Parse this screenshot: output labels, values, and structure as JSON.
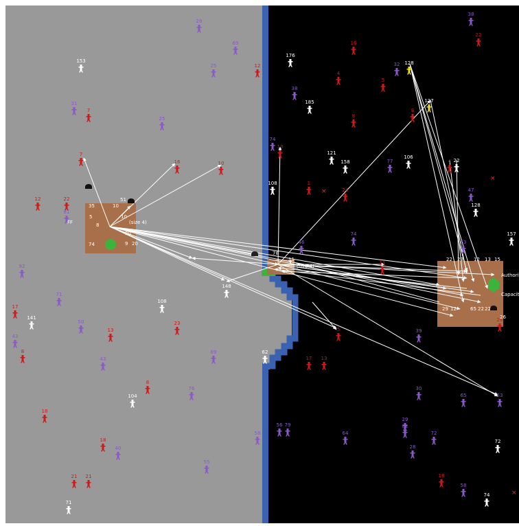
{
  "map": {
    "colors": {
      "land": "#999999",
      "sea": "#000000",
      "coast": "#3a62b0",
      "town": "#a8704a",
      "green": "#3cb43c",
      "arrow": "#ffffff",
      "agent_red": "#d01818",
      "agent_purple": "#8a58c8",
      "agent_white": "#ffffff",
      "agent_yellow": "#f0e020"
    }
  },
  "towns": [
    {
      "name": "town-west",
      "labels": [
        "35",
        "10",
        "5",
        "74",
        "20",
        "51",
        "9",
        "20",
        "8",
        "10"
      ],
      "fragments": [
        "FF",
        "(size 4)"
      ]
    },
    {
      "name": "town-center",
      "labels": [
        "78",
        "11"
      ],
      "fragments": [
        "(size 4)"
      ]
    },
    {
      "name": "town-east",
      "labels": [
        "22",
        "13",
        "15",
        "12",
        "29",
        "12",
        "65",
        "22",
        "22",
        "3",
        "23",
        "26"
      ],
      "fragments": [
        "Authorit",
        "Capacit"
      ]
    }
  ],
  "agents": [
    {
      "id": "28",
      "c": "purple"
    },
    {
      "id": "69",
      "c": "purple"
    },
    {
      "id": "12",
      "c": "red"
    },
    {
      "id": "153",
      "c": "white"
    },
    {
      "id": "25",
      "c": "purple"
    },
    {
      "id": "31",
      "c": "purple"
    },
    {
      "id": "7",
      "c": "red"
    },
    {
      "id": "25",
      "c": "purple"
    },
    {
      "id": "7",
      "c": "red"
    },
    {
      "id": "16",
      "c": "red"
    },
    {
      "id": "10",
      "c": "red"
    },
    {
      "id": "12",
      "c": "red"
    },
    {
      "id": "22",
      "c": "red"
    },
    {
      "id": "81",
      "c": "purple"
    },
    {
      "id": "92",
      "c": "purple"
    },
    {
      "id": "71",
      "c": "purple"
    },
    {
      "id": "17",
      "c": "red"
    },
    {
      "id": "141",
      "c": "white"
    },
    {
      "id": "43",
      "c": "purple"
    },
    {
      "id": "8",
      "c": "red"
    },
    {
      "id": "50",
      "c": "purple"
    },
    {
      "id": "13",
      "c": "red"
    },
    {
      "id": "43",
      "c": "purple"
    },
    {
      "id": "108",
      "c": "white"
    },
    {
      "id": "23",
      "c": "red"
    },
    {
      "id": "148",
      "c": "white"
    },
    {
      "id": "69",
      "c": "purple"
    },
    {
      "id": "8",
      "c": "red"
    },
    {
      "id": "104",
      "c": "white"
    },
    {
      "id": "76",
      "c": "purple"
    },
    {
      "id": "18",
      "c": "red"
    },
    {
      "id": "18",
      "c": "red"
    },
    {
      "id": "40",
      "c": "purple"
    },
    {
      "id": "55",
      "c": "purple"
    },
    {
      "id": "21",
      "c": "red"
    },
    {
      "id": "21",
      "c": "red"
    },
    {
      "id": "71",
      "c": "white"
    },
    {
      "id": "62",
      "c": "white"
    },
    {
      "id": "58",
      "c": "purple"
    },
    {
      "id": "38",
      "c": "purple"
    },
    {
      "id": "22",
      "c": "red"
    },
    {
      "id": "176",
      "c": "white"
    },
    {
      "id": "16",
      "c": "red"
    },
    {
      "id": "4",
      "c": "red"
    },
    {
      "id": "5",
      "c": "red"
    },
    {
      "id": "32",
      "c": "purple"
    },
    {
      "id": "128",
      "c": "yellow"
    },
    {
      "id": "38",
      "c": "purple"
    },
    {
      "id": "185",
      "c": "white"
    },
    {
      "id": "8",
      "c": "red"
    },
    {
      "id": "8",
      "c": "red"
    },
    {
      "id": "127",
      "c": "yellow"
    },
    {
      "id": "74",
      "c": "purple"
    },
    {
      "id": "13",
      "c": "red"
    },
    {
      "id": "121",
      "c": "white"
    },
    {
      "id": "158",
      "c": "white"
    },
    {
      "id": "77",
      "c": "purple"
    },
    {
      "id": "106",
      "c": "white"
    },
    {
      "id": "4",
      "c": "red"
    },
    {
      "id": "22",
      "c": "white"
    },
    {
      "id": "108",
      "c": "white"
    },
    {
      "id": "1",
      "c": "red"
    },
    {
      "id": "24",
      "c": "red"
    },
    {
      "id": "47",
      "c": "purple"
    },
    {
      "id": "128",
      "c": "white"
    },
    {
      "id": "157",
      "c": "white"
    },
    {
      "id": "74",
      "c": "purple"
    },
    {
      "id": "46",
      "c": "purple"
    },
    {
      "id": "11",
      "c": "red"
    },
    {
      "id": "63",
      "c": "purple"
    },
    {
      "id": "5",
      "c": "red"
    },
    {
      "id": "39",
      "c": "purple"
    },
    {
      "id": "17",
      "c": "red"
    },
    {
      "id": "13",
      "c": "red"
    },
    {
      "id": "30",
      "c": "purple"
    },
    {
      "id": "65",
      "c": "purple"
    },
    {
      "id": "53",
      "c": "purple"
    },
    {
      "id": "56",
      "c": "purple"
    },
    {
      "id": "79",
      "c": "purple"
    },
    {
      "id": "64",
      "c": "purple"
    },
    {
      "id": "29",
      "c": "purple"
    },
    {
      "id": "82",
      "c": "purple"
    },
    {
      "id": "72",
      "c": "purple"
    },
    {
      "id": "28",
      "c": "purple"
    },
    {
      "id": "72",
      "c": "white"
    },
    {
      "id": "18",
      "c": "red"
    },
    {
      "id": "58",
      "c": "purple"
    },
    {
      "id": "74",
      "c": "white"
    },
    {
      "id": "26",
      "c": "red"
    }
  ],
  "markers": [
    "×",
    "×",
    "×"
  ]
}
